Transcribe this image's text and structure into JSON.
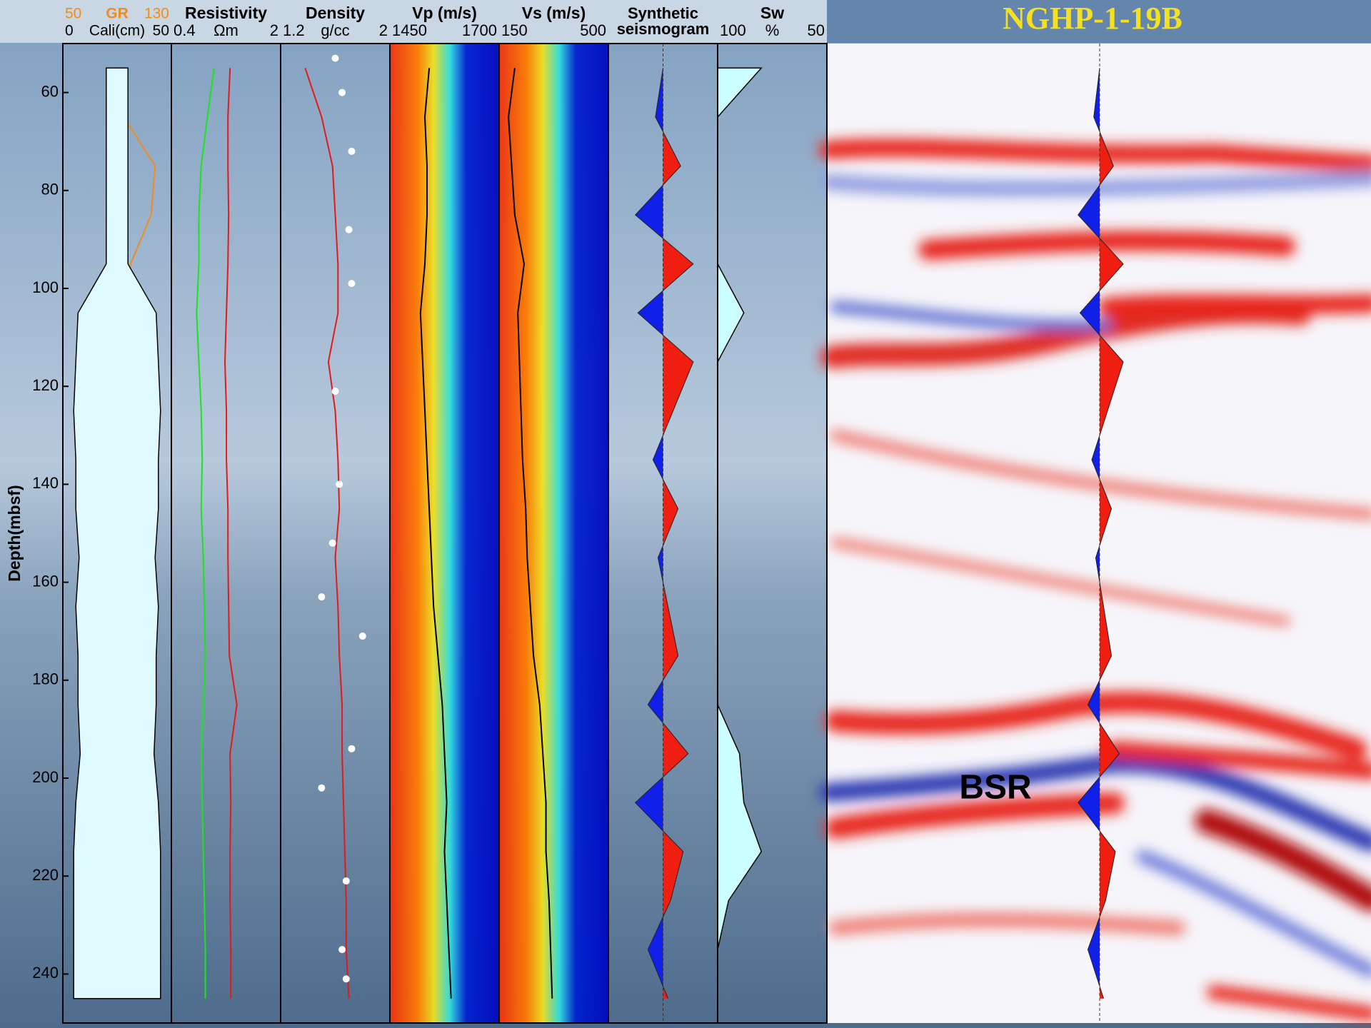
{
  "chart_data": {
    "type": "line",
    "title": "NGHP-1-19B",
    "y_label": "Depth(mbsf)",
    "annotation": "BSR",
    "ylim": [
      50,
      250
    ],
    "yticks": [
      60,
      80,
      100,
      120,
      140,
      160,
      180,
      200,
      220,
      240
    ],
    "y": [
      55,
      65,
      75,
      85,
      95,
      105,
      115,
      125,
      135,
      145,
      155,
      165,
      175,
      185,
      195,
      205,
      215,
      225,
      235,
      245
    ],
    "tracks": [
      {
        "series": [
          {
            "name": "GR",
            "color": "#f08c1e",
            "xlim": [
              50,
              130
            ],
            "values": [
              88,
              95,
              118,
              115,
              100,
              95,
              90,
              85,
              82,
              88,
              85,
              80,
              90,
              85,
              82,
              78,
              80,
              70,
              72,
              68
            ]
          },
          {
            "name": "Cali(cm)",
            "color": "#000000",
            "fill": "center",
            "fill_color": "#e0fbff",
            "xlim": [
              0,
              50
            ],
            "values": [
              10,
              10,
              10,
              10,
              10,
              36,
              38,
              40,
              38,
              38,
              35,
              38,
              36,
              36,
              34,
              38,
              40,
              40,
              40,
              40
            ]
          }
        ]
      },
      {
        "title": "Resistivity",
        "unit": "Ωm",
        "xlim": [
          0.4,
          2
        ],
        "log": true,
        "series": [
          {
            "color": "#19e619",
            "values": [
              0.75,
              0.68,
              0.62,
              0.6,
              0.6,
              0.58,
              0.6,
              0.62,
              0.63,
              0.62,
              0.64,
              0.65,
              0.66,
              0.64,
              0.62,
              0.63,
              0.64,
              0.65,
              0.66,
              0.66
            ]
          },
          {
            "color": "#e61919",
            "values": [
              0.95,
              0.92,
              0.92,
              0.93,
              0.92,
              0.9,
              0.88,
              0.9,
              0.9,
              0.92,
              0.92,
              0.93,
              0.94,
              1.05,
              0.95,
              0.96,
              0.95,
              0.95,
              0.96,
              0.96
            ]
          }
        ]
      },
      {
        "title": "Density",
        "unit": "g/cc",
        "xlim": [
          1.2,
          2
        ],
        "series": [
          {
            "color": "#e61919",
            "values": [
              1.38,
              1.5,
              1.58,
              1.6,
              1.62,
              1.62,
              1.55,
              1.6,
              1.62,
              1.63,
              1.6,
              1.62,
              1.63,
              1.65,
              1.65,
              1.66,
              1.67,
              1.68,
              1.68,
              1.7
            ]
          },
          {
            "color": "#ffffff",
            "marker": "dot",
            "depth": [
              53,
              60,
              72,
              88,
              99,
              121,
              140,
              152,
              163,
              171,
              194,
              202,
              221,
              235,
              241
            ],
            "values": [
              1.6,
              1.65,
              1.72,
              1.7,
              1.72,
              1.6,
              1.63,
              1.58,
              1.5,
              1.8,
              1.72,
              1.5,
              1.68,
              1.65,
              1.68
            ]
          }
        ]
      },
      {
        "title": "Vp (m/s)",
        "xlim": [
          1450,
          1700
        ],
        "heatmap": true,
        "series": [
          {
            "color": "#000000",
            "values": [
              1540,
              1530,
              1535,
              1535,
              1530,
              1520,
              1525,
              1530,
              1535,
              1540,
              1545,
              1550,
              1560,
              1570,
              1575,
              1580,
              1575,
              1580,
              1585,
              1590
            ]
          }
        ]
      },
      {
        "title": "Vs (m/s)",
        "xlim": [
          150,
          500
        ],
        "heatmap": true,
        "series": [
          {
            "color": "#000000",
            "values": [
              200,
              180,
              190,
              200,
              230,
              210,
              215,
              220,
              225,
              235,
              240,
              250,
              260,
              280,
              290,
              300,
              300,
              310,
              315,
              320
            ]
          }
        ]
      },
      {
        "title_lines": [
          "Synthetic",
          "seismogram"
        ],
        "xlim": [
          -1,
          1
        ],
        "series": [
          {
            "color": "#000000",
            "fill": "wiggle",
            "values": [
              0,
              -0.15,
              0.35,
              -0.55,
              0.6,
              -0.5,
              0.6,
              0.2,
              -0.2,
              0.3,
              -0.1,
              0.1,
              0.3,
              -0.3,
              0.5,
              -0.55,
              0.4,
              0.15,
              -0.3,
              0.1
            ]
          }
        ]
      },
      {
        "title": "Sw",
        "unit": "%",
        "xlim": [
          100,
          50
        ],
        "series": [
          {
            "color": "#000000",
            "fill": "left",
            "fill_color": "#ccffff",
            "values": [
              80,
              100,
              100,
              100,
              100,
              88,
              100,
              100,
              100,
              100,
              100,
              100,
              100,
              100,
              90,
              88,
              80,
              95,
              100,
              100
            ]
          }
        ]
      }
    ]
  }
}
